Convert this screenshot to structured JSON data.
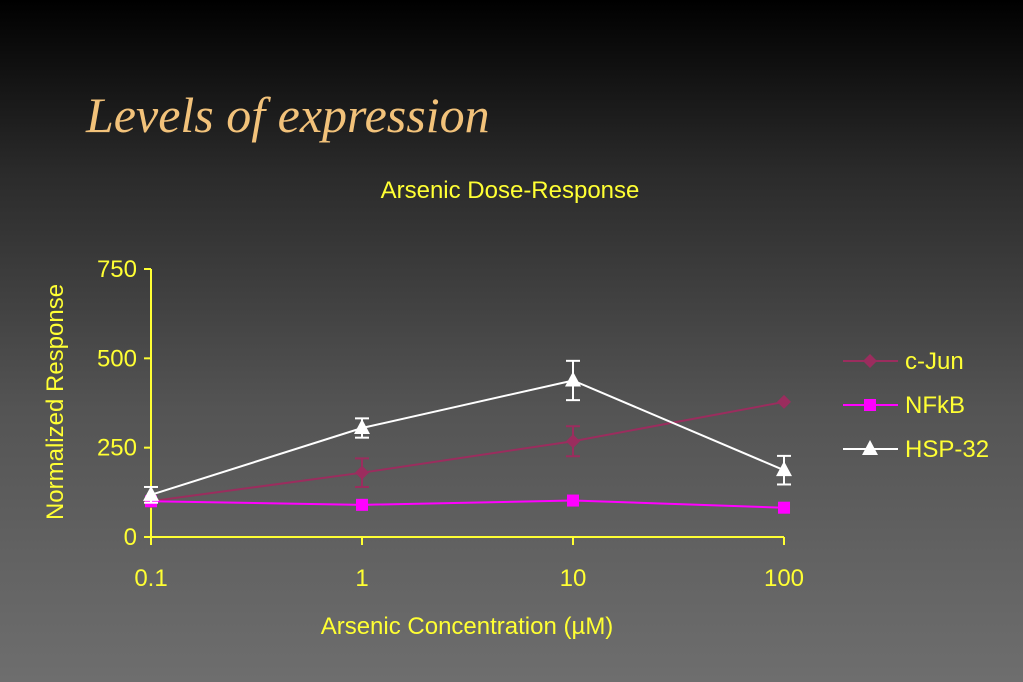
{
  "slide": {
    "title": "Levels of expression"
  },
  "colors": {
    "accent_text": "#ffff33",
    "title": "#f2c27a",
    "axis": "#ffff33",
    "c_jun": "#9b2d5e",
    "nfkb": "#ff00ff",
    "hsp32": "#ffffff"
  },
  "chart_data": {
    "type": "line",
    "title": "Arsenic Dose-Response",
    "xlabel": "Arsenic Concentration (µM)",
    "ylabel": "Normalized Response",
    "x_scale": "log",
    "x": [
      0.1,
      1,
      10,
      100
    ],
    "x_tick_labels": [
      "0.1",
      "1",
      "10",
      "100"
    ],
    "y_ticks": [
      0,
      250,
      500,
      750
    ],
    "ylim": [
      0,
      750
    ],
    "grid": false,
    "legend_position": "right",
    "series": [
      {
        "name": "c-Jun",
        "marker": "diamond",
        "values": [
          100,
          180,
          268,
          378
        ],
        "errors": [
          0,
          40,
          42,
          0
        ]
      },
      {
        "name": "NFkB",
        "marker": "square",
        "values": [
          100,
          90,
          102,
          82
        ],
        "errors": [
          0,
          0,
          0,
          0
        ]
      },
      {
        "name": "HSP-32",
        "marker": "triangle",
        "values": [
          118,
          305,
          438,
          187
        ],
        "errors": [
          22,
          27,
          55,
          40
        ]
      }
    ]
  }
}
